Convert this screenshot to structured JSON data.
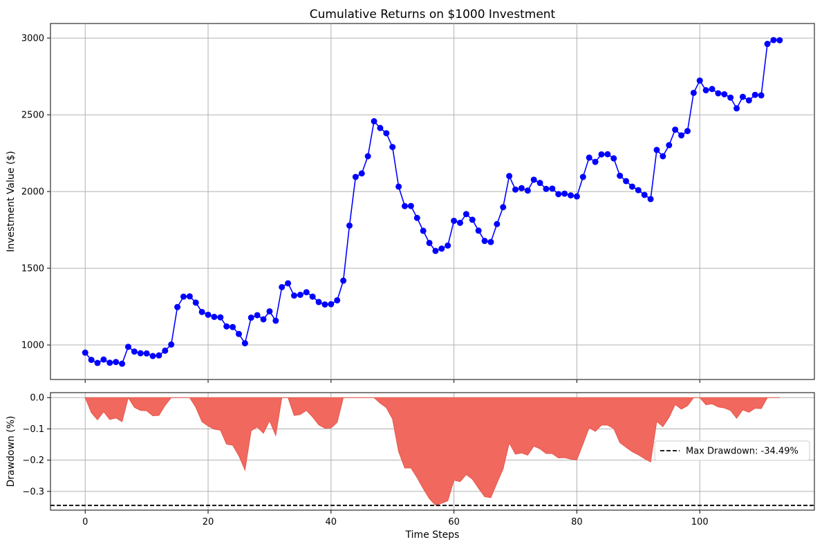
{
  "chart_data": [
    {
      "type": "line",
      "title": "Cumulative Returns on $1000 Investment",
      "xlabel": "",
      "ylabel": "Investment Value ($)",
      "xlim": [
        -5.65,
        118.65
      ],
      "ylim": [
        775,
        3095
      ],
      "xticks": [
        0,
        20,
        40,
        60,
        80,
        100
      ],
      "yticks": [
        1000,
        1500,
        2000,
        2500,
        3000
      ],
      "grid": true,
      "line_color": "#0000ff",
      "marker": "circle",
      "x_start": 0,
      "series": [
        {
          "values": [
            950,
            903,
            883,
            905,
            884,
            889,
            878,
            988,
            957,
            946,
            945,
            928,
            932,
            963,
            1003,
            1247,
            1315,
            1317,
            1276,
            1215,
            1197,
            1183,
            1180,
            1121,
            1117,
            1072,
            1011,
            1178,
            1194,
            1167,
            1219,
            1158,
            1377,
            1402,
            1322,
            1327,
            1344,
            1315,
            1280,
            1264,
            1266,
            1291,
            1419,
            1778,
            2095,
            2118,
            2230,
            2458,
            2414,
            2380,
            2290,
            2032,
            1905,
            1906,
            1828,
            1744,
            1665,
            1613,
            1628,
            1648,
            1809,
            1796,
            1853,
            1816,
            1745,
            1678,
            1671,
            1788,
            1898,
            2101,
            2013,
            2022,
            2006,
            2077,
            2056,
            2017,
            2019,
            1983,
            1986,
            1975,
            1968,
            2095,
            2221,
            2193,
            2242,
            2243,
            2216,
            2103,
            2068,
            2032,
            2009,
            1978,
            1951,
            2271,
            2230,
            2302,
            2403,
            2366,
            2394,
            2643,
            2723,
            2660,
            2668,
            2640,
            2634,
            2612,
            2542,
            2617,
            2594,
            2630,
            2627,
            2962,
            2987,
            2986
          ]
        }
      ]
    },
    {
      "type": "area",
      "title": "",
      "xlabel": "Time Steps",
      "ylabel": "Drawdown (%)",
      "xlim": [
        -5.65,
        118.65
      ],
      "ylim": [
        -0.36,
        0.016
      ],
      "xticks": [
        0,
        20,
        40,
        60,
        80,
        100
      ],
      "yticks": [
        0.0,
        -0.1,
        -0.2,
        -0.3
      ],
      "ytick_labels": [
        "0.0",
        "−0.1",
        "−0.2",
        "−0.3"
      ],
      "grid": true,
      "fill_color": "#f0685e",
      "x_start": 0,
      "series": [
        {
          "values": [
            0.0,
            -0.048,
            -0.071,
            -0.045,
            -0.07,
            -0.065,
            -0.077,
            0.0,
            -0.031,
            -0.041,
            -0.042,
            -0.058,
            -0.057,
            -0.025,
            0.0,
            0.0,
            0.0,
            0.0,
            -0.031,
            -0.077,
            -0.091,
            -0.101,
            -0.104,
            -0.149,
            -0.152,
            -0.186,
            -0.232,
            -0.106,
            -0.094,
            -0.114,
            -0.074,
            -0.121,
            0.0,
            0.0,
            -0.057,
            -0.054,
            -0.041,
            -0.062,
            -0.087,
            -0.098,
            -0.097,
            -0.079,
            0.0,
            0.0,
            0.0,
            0.0,
            0.0,
            0.0,
            -0.018,
            -0.032,
            -0.068,
            -0.173,
            -0.225,
            -0.225,
            -0.256,
            -0.291,
            -0.323,
            -0.344,
            -0.338,
            -0.33,
            -0.264,
            -0.269,
            -0.246,
            -0.261,
            -0.29,
            -0.317,
            -0.32,
            -0.273,
            -0.228,
            -0.145,
            -0.181,
            -0.177,
            -0.184,
            -0.155,
            -0.164,
            -0.179,
            -0.179,
            -0.193,
            -0.192,
            -0.197,
            -0.199,
            -0.148,
            -0.096,
            -0.108,
            -0.088,
            -0.088,
            -0.099,
            -0.144,
            -0.159,
            -0.173,
            -0.183,
            -0.195,
            -0.206,
            -0.076,
            -0.093,
            -0.063,
            -0.022,
            -0.037,
            -0.026,
            0.0,
            0.0,
            -0.023,
            -0.02,
            -0.03,
            -0.033,
            -0.041,
            -0.066,
            -0.039,
            -0.047,
            -0.034,
            -0.035,
            0.0,
            0.0,
            0.0
          ]
        }
      ],
      "reference_line": {
        "value": -0.3449,
        "style": "dashed",
        "color": "#000000",
        "label": "Max Drawdown: -34.49%"
      },
      "legend": "center-right"
    }
  ]
}
